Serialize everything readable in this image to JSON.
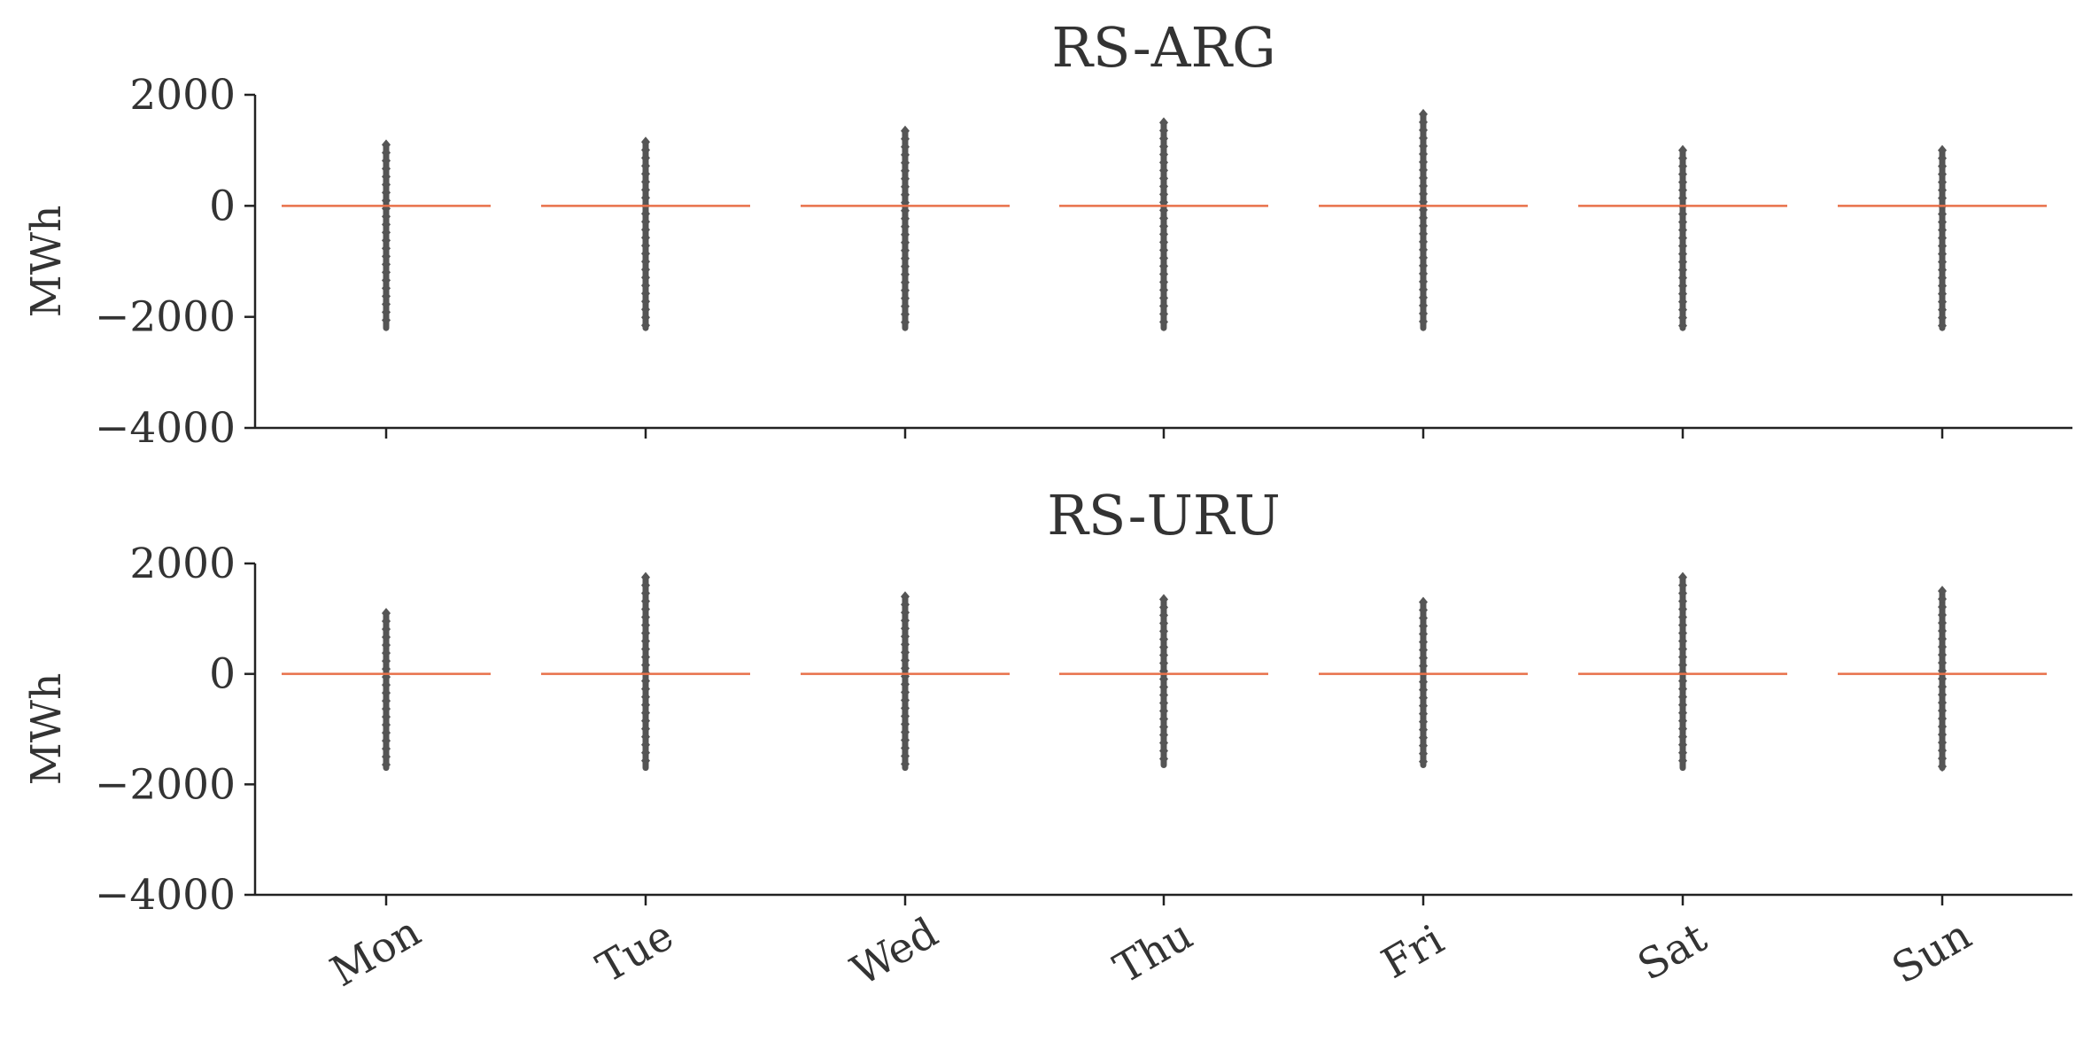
{
  "chart_data": [
    {
      "type": "box",
      "title": "RS-ARG",
      "xlabel": "",
      "ylabel": "MWh",
      "categories": [
        "Mon",
        "Tue",
        "Wed",
        "Thu",
        "Fri",
        "Sat",
        "Sun"
      ],
      "ylim": [
        -4000,
        2000
      ],
      "yticks": [
        2000,
        0,
        -2000,
        -4000
      ],
      "ytick_labels": [
        "2000",
        "0",
        "−2000",
        "−4000"
      ],
      "median": [
        0,
        0,
        0,
        0,
        0,
        0,
        0
      ],
      "outlier_range": [
        [
          -2200,
          1100
        ],
        [
          -2200,
          1150
        ],
        [
          -2200,
          1350
        ],
        [
          -2200,
          1500
        ],
        [
          -2200,
          1650
        ],
        [
          -2200,
          1000
        ],
        [
          -2200,
          1000
        ]
      ],
      "show_xtick_labels": false,
      "colors": {
        "median": "#e8714a",
        "outliers": "#555555",
        "axis": "#222222"
      }
    },
    {
      "type": "box",
      "title": "RS-URU",
      "xlabel": "",
      "ylabel": "MWh",
      "categories": [
        "Mon",
        "Tue",
        "Wed",
        "Thu",
        "Fri",
        "Sat",
        "Sun"
      ],
      "ylim": [
        -4000,
        2000
      ],
      "yticks": [
        2000,
        0,
        -2000,
        -4000
      ],
      "ytick_labels": [
        "2000",
        "0",
        "−2000",
        "−4000"
      ],
      "median": [
        0,
        0,
        0,
        0,
        0,
        0,
        0
      ],
      "outlier_range": [
        [
          -1700,
          1100
        ],
        [
          -1700,
          1750
        ],
        [
          -1700,
          1400
        ],
        [
          -1650,
          1350
        ],
        [
          -1650,
          1300
        ],
        [
          -1700,
          1750
        ],
        [
          -1700,
          1500
        ]
      ],
      "show_xtick_labels": true,
      "colors": {
        "median": "#e8714a",
        "outliers": "#555555",
        "axis": "#222222"
      }
    }
  ]
}
